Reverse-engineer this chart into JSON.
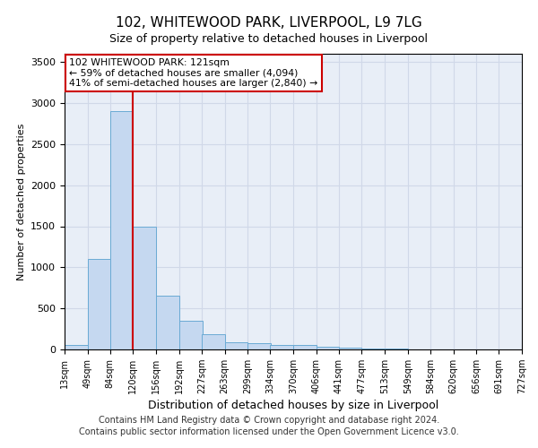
{
  "title": "102, WHITEWOOD PARK, LIVERPOOL, L9 7LG",
  "subtitle": "Size of property relative to detached houses in Liverpool",
  "xlabel": "Distribution of detached houses by size in Liverpool",
  "ylabel": "Number of detached properties",
  "footer_line1": "Contains HM Land Registry data © Crown copyright and database right 2024.",
  "footer_line2": "Contains public sector information licensed under the Open Government Licence v3.0.",
  "bin_edges": [
    13,
    49,
    84,
    120,
    156,
    192,
    227,
    263,
    299,
    334,
    370,
    406,
    441,
    477,
    513,
    549,
    584,
    620,
    656,
    691,
    727
  ],
  "bar_heights": [
    55,
    1100,
    2900,
    1500,
    650,
    350,
    190,
    90,
    80,
    55,
    55,
    35,
    20,
    10,
    8,
    5,
    3,
    3,
    2,
    2
  ],
  "bar_color": "#c5d8f0",
  "bar_edge_color": "#6aaad4",
  "grid_color": "#d0d8e8",
  "bg_color": "#e8eef7",
  "annotation_line1": "102 WHITEWOOD PARK: 121sqm",
  "annotation_line2": "← 59% of detached houses are smaller (4,094)",
  "annotation_line3": "41% of semi-detached houses are larger (2,840) →",
  "annotation_box_color": "#ffffff",
  "annotation_box_edge": "#cc0000",
  "vline_x": 120,
  "vline_color": "#cc0000",
  "ylim": [
    0,
    3600
  ],
  "yticks": [
    0,
    500,
    1000,
    1500,
    2000,
    2500,
    3000,
    3500
  ],
  "tick_labels": [
    "13sqm",
    "49sqm",
    "84sqm",
    "120sqm",
    "156sqm",
    "192sqm",
    "227sqm",
    "263sqm",
    "299sqm",
    "334sqm",
    "370sqm",
    "406sqm",
    "441sqm",
    "477sqm",
    "513sqm",
    "549sqm",
    "584sqm",
    "620sqm",
    "656sqm",
    "691sqm",
    "727sqm"
  ]
}
